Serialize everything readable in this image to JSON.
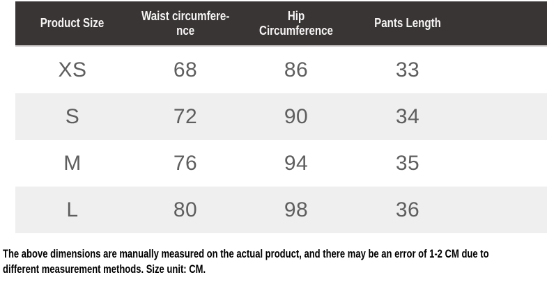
{
  "chart_data": {
    "type": "table",
    "title": "",
    "columns": [
      "Product Size",
      "Waist circumfere-\nnce",
      "Hip Circumference",
      "Pants Length"
    ],
    "rows": [
      [
        "XS",
        "68",
        "86",
        "33"
      ],
      [
        "S",
        "72",
        "90",
        "34"
      ],
      [
        "M",
        "76",
        "94",
        "35"
      ],
      [
        "L",
        "80",
        "98",
        "36"
      ]
    ],
    "unit": "CM",
    "layout": "alternating row stripes, dark header band, trailing empty column"
  },
  "note": {
    "lines": [
      "The above dimensions are manually measured on the actual product, and there may be an error of 1-2 CM due to",
      "different measurement methods. Size unit: CM."
    ]
  },
  "colors": {
    "header_bg": "#393535",
    "header_text": "#f6f4f4",
    "row_bg": "#ffffff",
    "row_alt_bg": "#efefef",
    "cell_text": "#5e5e5e",
    "note_text": "#000000"
  }
}
